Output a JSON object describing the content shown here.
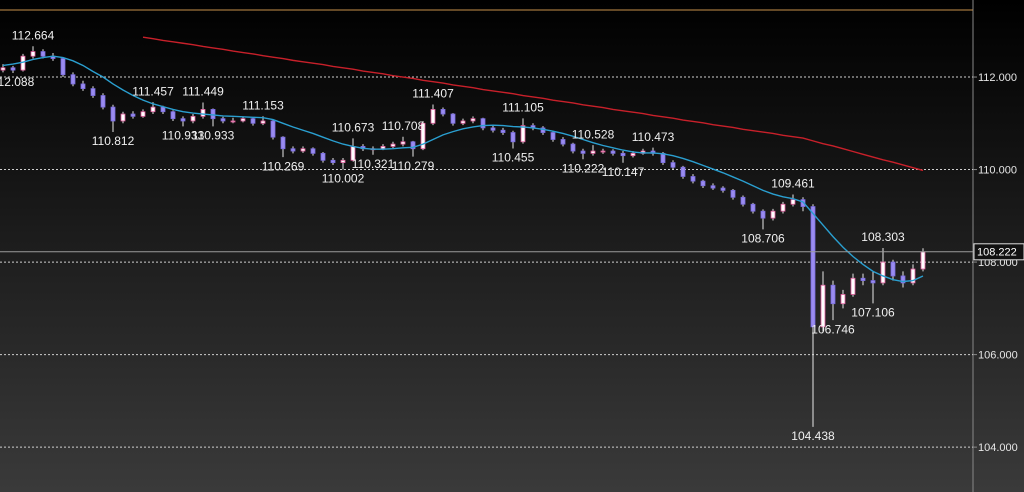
{
  "chart_data": {
    "type": "candlestick",
    "ylim": [
      103.03,
      113.665
    ],
    "yticks": [
      {
        "value": 104,
        "label": "104.000"
      },
      {
        "value": 106,
        "label": "106.000"
      },
      {
        "value": 108,
        "label": "108.000"
      },
      {
        "value": 110,
        "label": "110.000"
      },
      {
        "value": 112,
        "label": "112.000"
      }
    ],
    "grid": true,
    "up_color": "#ffffff",
    "down_color": "#9a8cf0",
    "top_line": 113.45,
    "top_line_color": "#c8914a",
    "candles": [
      [
        112.15,
        112.28,
        112.1,
        112.2
      ],
      [
        112.2,
        112.24,
        112.088,
        112.15
      ],
      [
        112.15,
        112.5,
        112.12,
        112.45
      ],
      [
        112.45,
        112.664,
        112.4,
        112.55
      ],
      [
        112.55,
        112.6,
        112.4,
        112.45
      ],
      [
        112.45,
        112.52,
        112.35,
        112.4
      ],
      [
        112.4,
        112.43,
        112.0,
        112.05
      ],
      [
        112.05,
        112.1,
        111.8,
        111.85
      ],
      [
        111.85,
        111.92,
        111.7,
        111.75
      ],
      [
        111.75,
        111.8,
        111.55,
        111.6
      ],
      [
        111.6,
        111.65,
        111.3,
        111.35
      ],
      [
        111.35,
        111.4,
        110.812,
        111.05
      ],
      [
        111.05,
        111.25,
        111.0,
        111.2
      ],
      [
        111.2,
        111.26,
        111.1,
        111.15
      ],
      [
        111.15,
        111.3,
        111.12,
        111.25
      ],
      [
        111.25,
        111.457,
        111.2,
        111.35
      ],
      [
        111.35,
        111.38,
        111.2,
        111.25
      ],
      [
        111.25,
        111.28,
        111.05,
        111.1
      ],
      [
        111.1,
        111.15,
        110.933,
        111.05
      ],
      [
        111.05,
        111.2,
        111.0,
        111.15
      ],
      [
        111.15,
        111.449,
        111.1,
        111.3
      ],
      [
        111.3,
        111.32,
        110.933,
        111.1
      ],
      [
        111.1,
        111.14,
        111.0,
        111.05
      ],
      [
        111.05,
        111.12,
        111.0,
        111.05
      ],
      [
        111.05,
        111.15,
        111.02,
        111.1
      ],
      [
        111.1,
        111.12,
        110.95,
        111.0
      ],
      [
        111.0,
        111.153,
        110.96,
        111.05
      ],
      [
        111.05,
        111.08,
        110.65,
        110.7
      ],
      [
        110.7,
        110.72,
        110.269,
        110.45
      ],
      [
        110.45,
        110.5,
        110.35,
        110.4
      ],
      [
        110.4,
        110.5,
        110.36,
        110.45
      ],
      [
        110.45,
        110.48,
        110.3,
        110.35
      ],
      [
        110.35,
        110.38,
        110.15,
        110.2
      ],
      [
        110.2,
        110.25,
        110.1,
        110.15
      ],
      [
        110.15,
        110.25,
        110.002,
        110.2
      ],
      [
        110.2,
        110.673,
        110.18,
        110.5
      ],
      [
        110.5,
        110.55,
        110.4,
        110.45
      ],
      [
        110.45,
        110.5,
        110.321,
        110.45
      ],
      [
        110.45,
        110.55,
        110.42,
        110.5
      ],
      [
        110.5,
        110.6,
        110.46,
        110.55
      ],
      [
        110.55,
        110.708,
        110.5,
        110.6
      ],
      [
        110.6,
        110.62,
        110.279,
        110.45
      ],
      [
        110.45,
        111.05,
        110.42,
        111.0
      ],
      [
        111.0,
        111.407,
        110.96,
        111.3
      ],
      [
        111.3,
        111.34,
        111.15,
        111.2
      ],
      [
        111.2,
        111.22,
        110.95,
        111.0
      ],
      [
        111.0,
        111.1,
        110.96,
        111.05
      ],
      [
        111.05,
        111.15,
        111.0,
        111.1
      ],
      [
        111.1,
        111.12,
        110.85,
        110.9
      ],
      [
        110.9,
        110.95,
        110.8,
        110.85
      ],
      [
        110.85,
        110.9,
        110.75,
        110.8
      ],
      [
        110.8,
        110.84,
        110.455,
        110.6
      ],
      [
        110.6,
        111.105,
        110.56,
        110.95
      ],
      [
        110.95,
        111.0,
        110.85,
        110.9
      ],
      [
        110.9,
        110.94,
        110.75,
        110.8
      ],
      [
        110.8,
        110.84,
        110.6,
        110.65
      ],
      [
        110.65,
        110.7,
        110.5,
        110.55
      ],
      [
        110.55,
        110.58,
        110.35,
        110.4
      ],
      [
        110.4,
        110.45,
        110.222,
        110.35
      ],
      [
        110.35,
        110.528,
        110.3,
        110.4
      ],
      [
        110.4,
        110.45,
        110.34,
        110.4
      ],
      [
        110.4,
        110.44,
        110.3,
        110.35
      ],
      [
        110.35,
        110.4,
        110.147,
        110.3
      ],
      [
        110.3,
        110.4,
        110.26,
        110.35
      ],
      [
        110.35,
        110.45,
        110.32,
        110.4
      ],
      [
        110.4,
        110.473,
        110.3,
        110.35
      ],
      [
        110.35,
        110.38,
        110.1,
        110.15
      ],
      [
        110.15,
        110.2,
        110.0,
        110.05
      ],
      [
        110.05,
        110.08,
        109.8,
        109.85
      ],
      [
        109.85,
        109.9,
        109.7,
        109.75
      ],
      [
        109.75,
        109.78,
        109.6,
        109.65
      ],
      [
        109.65,
        109.7,
        109.56,
        109.6
      ],
      [
        109.6,
        109.64,
        109.5,
        109.55
      ],
      [
        109.55,
        109.58,
        109.35,
        109.4
      ],
      [
        109.4,
        109.44,
        109.2,
        109.25
      ],
      [
        109.25,
        109.28,
        109.05,
        109.1
      ],
      [
        109.1,
        109.14,
        108.706,
        108.95
      ],
      [
        108.95,
        109.15,
        108.9,
        109.1
      ],
      [
        109.1,
        109.3,
        109.05,
        109.25
      ],
      [
        109.25,
        109.461,
        109.2,
        109.35
      ],
      [
        109.35,
        109.4,
        109.1,
        109.2
      ],
      [
        109.2,
        109.25,
        104.438,
        106.6
      ],
      [
        106.6,
        107.8,
        106.5,
        107.5
      ],
      [
        107.5,
        107.6,
        106.746,
        107.1
      ],
      [
        107.1,
        107.4,
        107.0,
        107.3
      ],
      [
        107.3,
        107.75,
        107.25,
        107.65
      ],
      [
        107.65,
        107.75,
        107.5,
        107.6
      ],
      [
        107.6,
        107.8,
        107.106,
        107.55
      ],
      [
        107.55,
        108.303,
        107.5,
        108.0
      ],
      [
        108.0,
        108.05,
        107.6,
        107.7
      ],
      [
        107.7,
        107.8,
        107.45,
        107.55
      ],
      [
        107.55,
        107.95,
        107.5,
        107.85
      ],
      [
        107.85,
        108.3,
        107.8,
        108.222
      ]
    ],
    "labeled_highs": [
      3,
      15,
      20,
      26,
      35,
      40,
      43,
      52,
      59,
      65,
      79,
      88
    ],
    "labeled_lows": [
      1,
      11,
      18,
      21,
      28,
      34,
      37,
      41,
      51,
      58,
      62,
      76,
      81,
      83,
      87
    ],
    "series": [
      {
        "color": "#2a9fd0",
        "values": [
          112.25,
          112.28,
          112.32,
          112.38,
          112.42,
          112.45,
          112.42,
          112.35,
          112.25,
          112.12,
          112.0,
          111.85,
          111.72,
          111.6,
          111.5,
          111.42,
          111.36,
          111.3,
          111.25,
          111.22,
          111.2,
          111.18,
          111.16,
          111.15,
          111.14,
          111.13,
          111.12,
          111.08,
          111.0,
          110.92,
          110.85,
          110.78,
          110.7,
          110.62,
          110.55,
          110.5,
          110.46,
          110.44,
          110.44,
          110.45,
          110.47,
          110.48,
          110.55,
          110.65,
          110.75,
          110.82,
          110.88,
          110.92,
          110.95,
          110.96,
          110.95,
          110.93,
          110.92,
          110.9,
          110.87,
          110.83,
          110.78,
          110.72,
          110.65,
          110.58,
          110.52,
          110.47,
          110.42,
          110.38,
          110.36,
          110.36,
          110.34,
          110.3,
          110.24,
          110.17,
          110.09,
          110.01,
          109.93,
          109.84,
          109.75,
          109.65,
          109.55,
          109.47,
          109.41,
          109.37,
          109.3,
          109.05,
          108.8,
          108.55,
          108.32,
          108.12,
          107.95,
          107.8,
          107.7,
          107.62,
          107.58,
          107.6,
          107.7
        ]
      },
      {
        "color": "#c8202a",
        "values": [
          null,
          null,
          null,
          null,
          null,
          null,
          null,
          null,
          null,
          null,
          null,
          null,
          null,
          null,
          112.86,
          112.83,
          112.79,
          112.76,
          112.73,
          112.7,
          112.66,
          112.63,
          112.6,
          112.56,
          112.53,
          112.5,
          112.46,
          112.43,
          112.4,
          112.36,
          112.33,
          112.3,
          112.27,
          112.23,
          112.2,
          112.17,
          112.13,
          112.1,
          112.07,
          112.03,
          112.0,
          111.97,
          111.93,
          111.9,
          111.87,
          111.83,
          111.8,
          111.77,
          111.73,
          111.7,
          111.67,
          111.64,
          111.6,
          111.57,
          111.54,
          111.5,
          111.47,
          111.44,
          111.4,
          111.37,
          111.34,
          111.3,
          111.27,
          111.24,
          111.21,
          111.17,
          111.14,
          111.11,
          111.07,
          111.04,
          111.01,
          110.97,
          110.94,
          110.91,
          110.87,
          110.84,
          110.81,
          110.78,
          110.74,
          110.71,
          110.68,
          110.62,
          110.56,
          110.51,
          110.45,
          110.39,
          110.33,
          110.27,
          110.21,
          110.16,
          110.1,
          110.04,
          109.98
        ]
      }
    ]
  }
}
